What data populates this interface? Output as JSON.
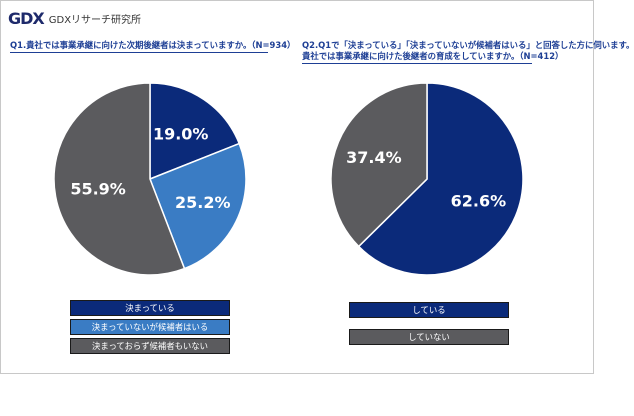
{
  "header": {
    "logo_mark": "GDX",
    "logo_text": "GDXリサーチ研究所"
  },
  "colors": {
    "dark_blue": "#0b2a7a",
    "mid_blue": "#3a7cc4",
    "gray": "#5b5b5e"
  },
  "chart_data": [
    {
      "type": "pie",
      "title_lines": [
        "Q1.貴社では事業承継に向けた次期後継者は決まっていますか。（N=934）"
      ],
      "slices": [
        {
          "label": "決まっている",
          "value": 19.0,
          "display": "19.0%",
          "color": "#0b2a7a"
        },
        {
          "label": "決まっていないが候補者はいる",
          "value": 25.2,
          "display": "25.2%",
          "color": "#3a7cc4"
        },
        {
          "label": "決まっておらず候補者もいない",
          "value": 55.9,
          "display": "55.9%",
          "color": "#5b5b5e"
        }
      ]
    },
    {
      "type": "pie",
      "title_lines": [
        "Q2.Q1で「決まっている」「決まっていないが候補者はいる」と回答した方に伺います。",
        "貴社では事業承継に向けた後継者の育成をしていますか。（N=412）"
      ],
      "slices": [
        {
          "label": "している",
          "value": 62.6,
          "display": "62.6%",
          "color": "#0b2a7a"
        },
        {
          "label": "していない",
          "value": 37.4,
          "display": "37.4%",
          "color": "#5b5b5e"
        }
      ]
    }
  ]
}
